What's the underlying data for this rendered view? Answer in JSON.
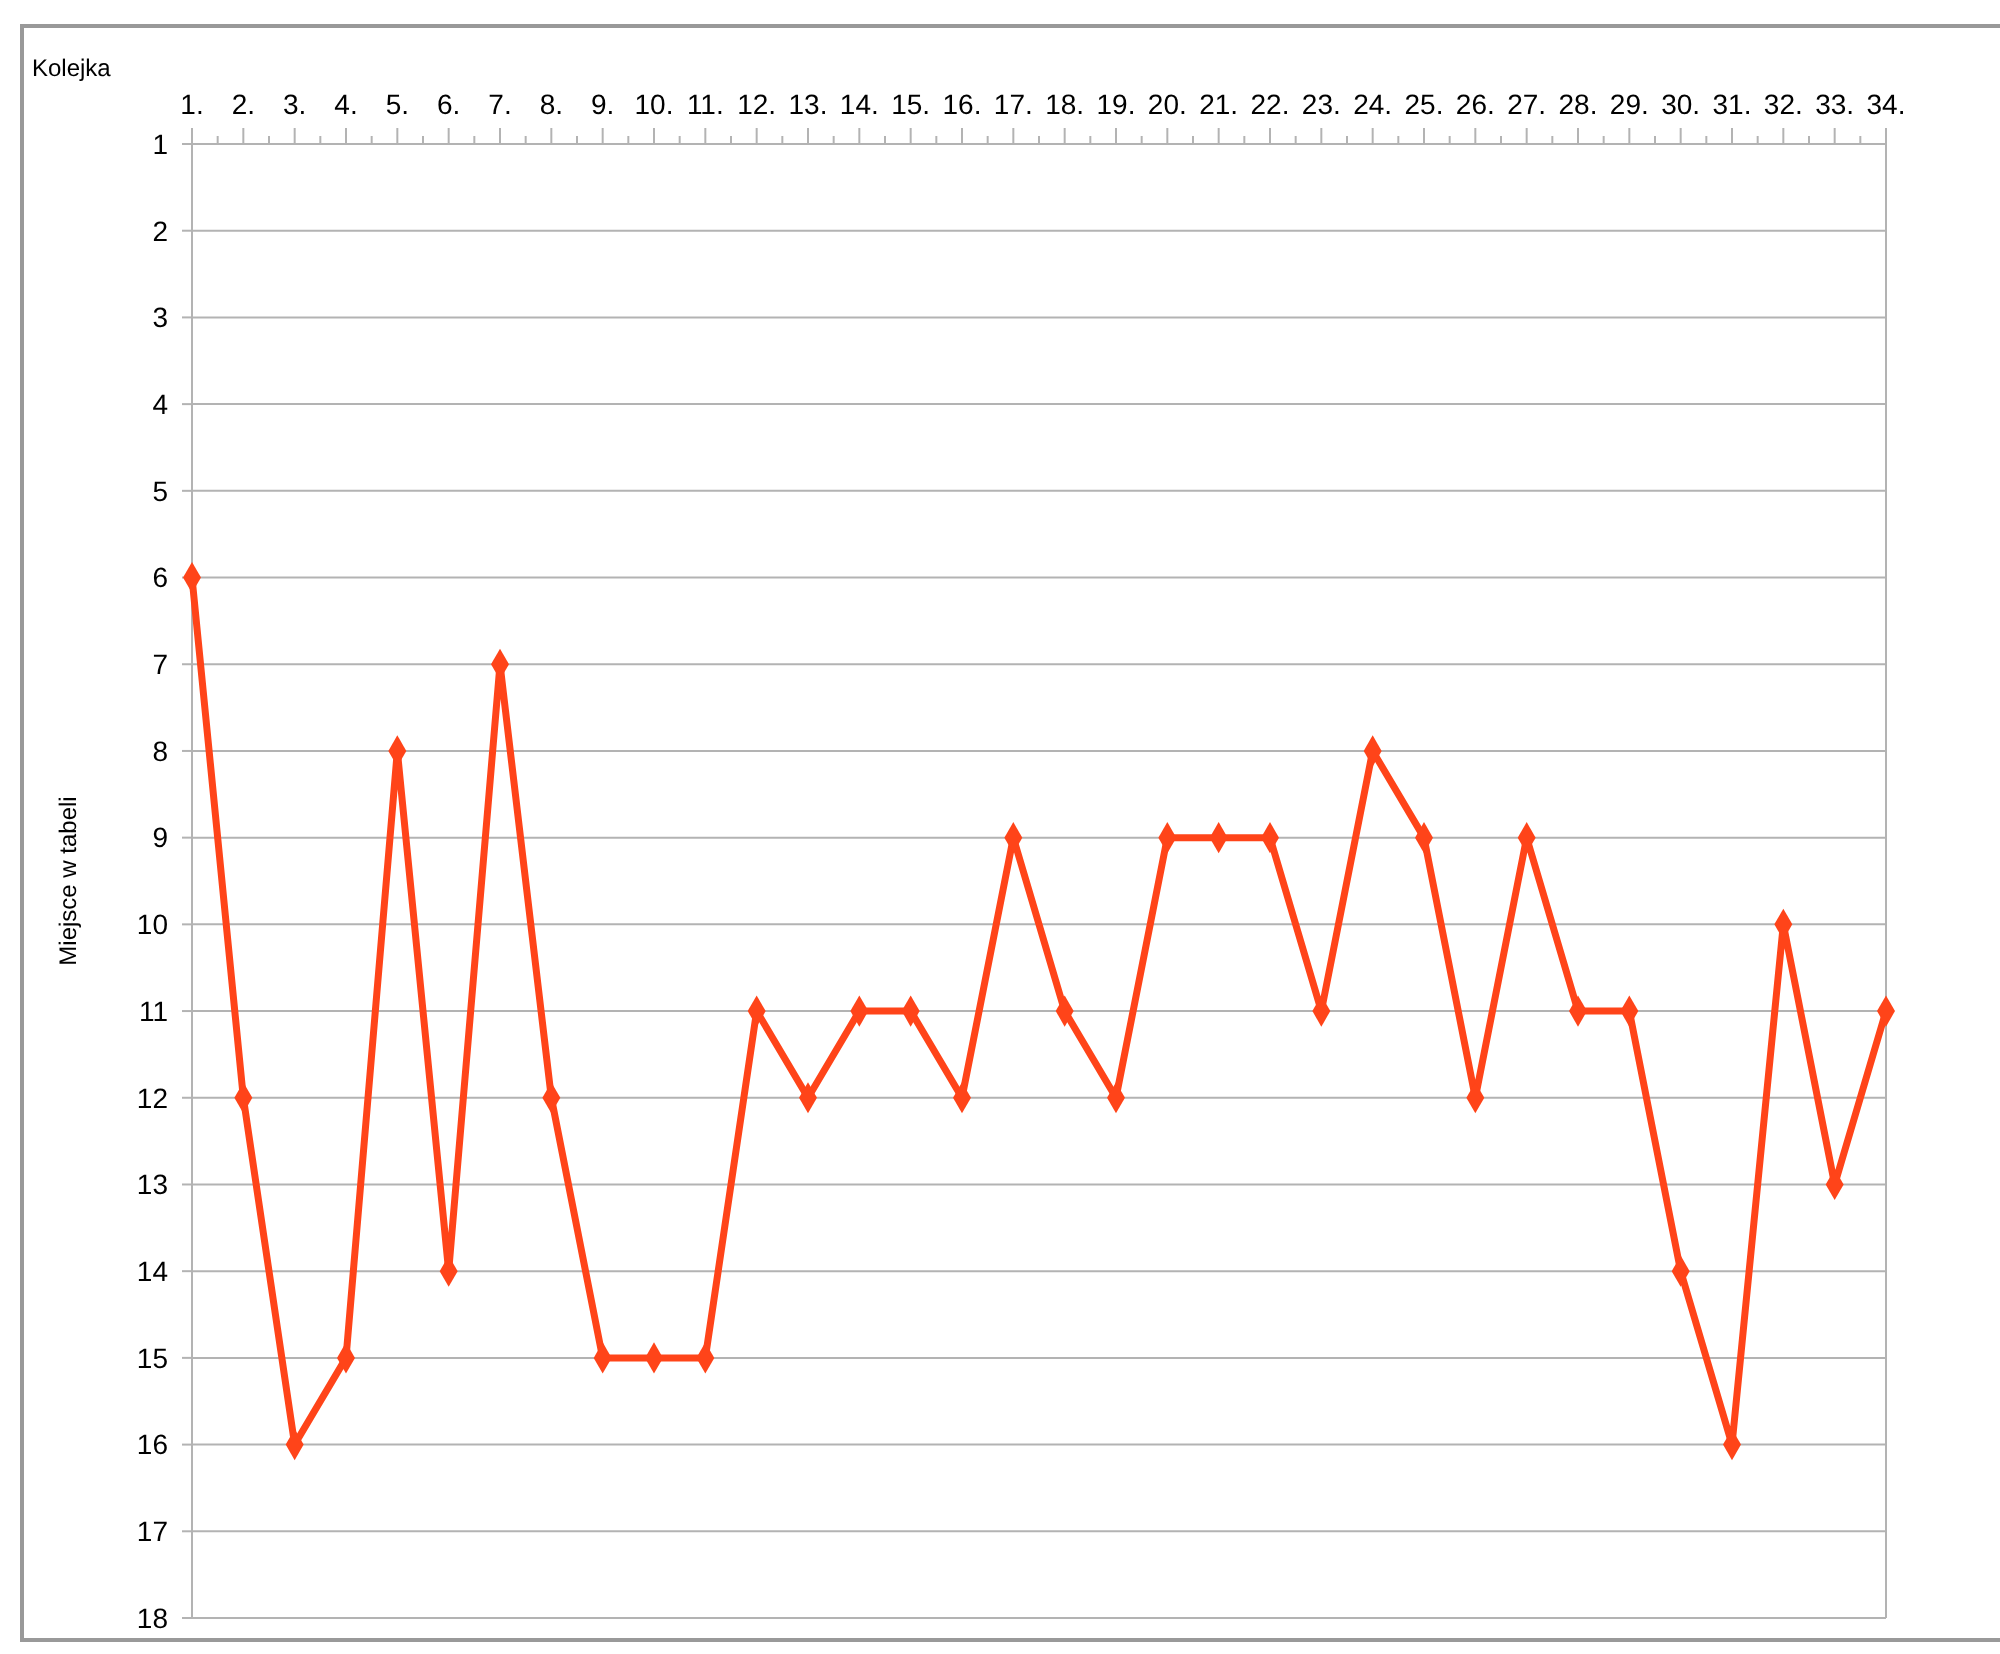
{
  "chart_data": {
    "type": "line",
    "xlabel": "Kolejka",
    "ylabel": "Miejsce w tabeli",
    "categories": [
      "1.",
      "2.",
      "3.",
      "4.",
      "5.",
      "6.",
      "7.",
      "8.",
      "9.",
      "10.",
      "11.",
      "12.",
      "13.",
      "14.",
      "15.",
      "16.",
      "17.",
      "18.",
      "19.",
      "20.",
      "21.",
      "22.",
      "23.",
      "24.",
      "25.",
      "26.",
      "27.",
      "28.",
      "29.",
      "30.",
      "31.",
      "32.",
      "33.",
      "34."
    ],
    "series": [
      {
        "color": "#ff4419",
        "values": [
          6,
          12,
          16,
          15,
          8,
          14,
          7,
          12,
          15,
          15,
          15,
          11,
          12,
          11,
          11,
          12,
          9,
          11,
          12,
          9,
          9,
          9,
          11,
          8,
          9,
          12,
          9,
          11,
          11,
          14,
          16,
          10,
          13,
          11
        ]
      }
    ],
    "ylim": [
      18,
      1
    ],
    "yticks": [
      1,
      2,
      3,
      4,
      5,
      6,
      7,
      8,
      9,
      10,
      11,
      12,
      13,
      14,
      15,
      16,
      17,
      18
    ],
    "grid": "y",
    "marker": "diamond",
    "line_style": "solid"
  }
}
